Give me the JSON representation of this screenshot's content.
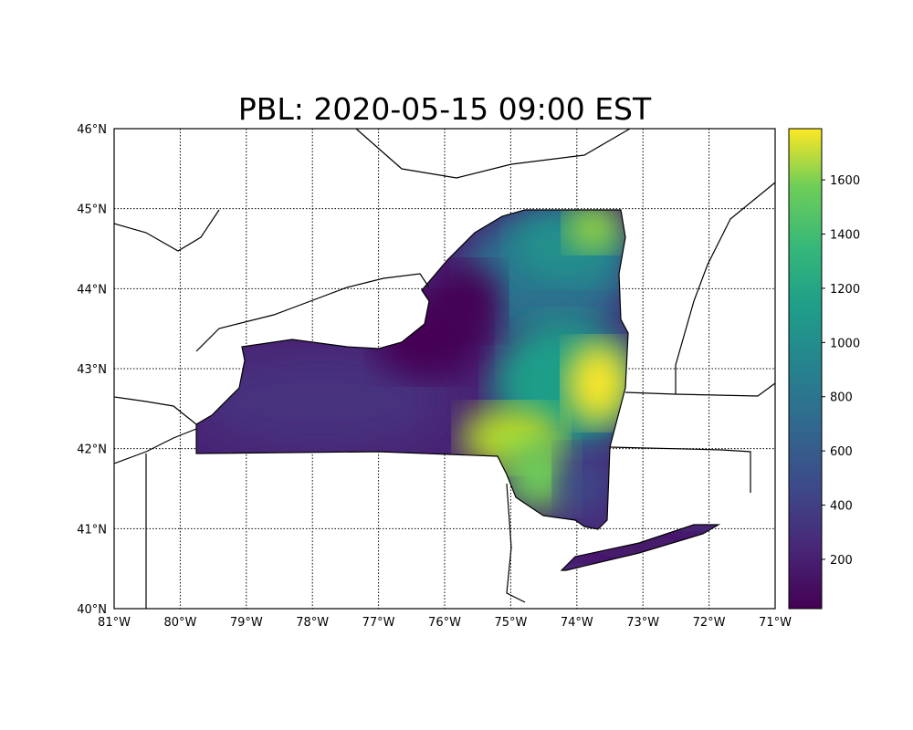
{
  "title": "PBL: 2020-05-15 09:00 EST",
  "chart_data": {
    "type": "heatmap",
    "title": "PBL: 2020-05-15 09:00 EST",
    "colormap": "viridis",
    "extent": {
      "lon": [
        -81,
        -71
      ],
      "lat": [
        40,
        46
      ]
    },
    "grid": true,
    "x_ticks": [
      "81°W",
      "80°W",
      "79°W",
      "78°W",
      "77°W",
      "76°W",
      "75°W",
      "74°W",
      "73°W",
      "72°W",
      "71°W"
    ],
    "y_ticks": [
      "40°N",
      "41°N",
      "42°N",
      "43°N",
      "44°N",
      "45°N",
      "46°N"
    ],
    "colorbar": {
      "range": [
        18,
        1789
      ],
      "ticks": [
        "200",
        "400",
        "600",
        "800",
        "1000",
        "1200",
        "1400",
        "1600"
      ],
      "placement": "right"
    }
  }
}
